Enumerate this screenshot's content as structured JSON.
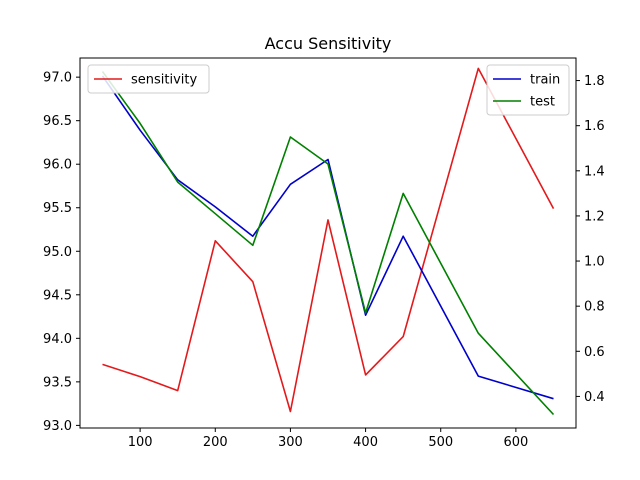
{
  "chart_data": {
    "type": "line",
    "title": "Accu Sensitivity",
    "xlabel": "",
    "ylabel_left": "",
    "ylabel_right": "",
    "xlim": [
      20,
      680
    ],
    "xticks": [
      100,
      200,
      300,
      400,
      500,
      600
    ],
    "ylim_left": [
      92.97,
      97.22
    ],
    "yticks_left": [
      "93.0",
      "93.5",
      "94.0",
      "94.5",
      "95.0",
      "95.5",
      "96.0",
      "96.5",
      "97.0"
    ],
    "ylim_right": [
      0.26,
      1.9
    ],
    "yticks_right": [
      "0.4",
      "0.6",
      "0.8",
      "1.0",
      "1.2",
      "1.4",
      "1.6",
      "1.8"
    ],
    "grid": false,
    "series": [
      {
        "name": "sensitivity",
        "axis": "left",
        "color": "#e31a1c",
        "x": [
          50,
          100,
          150,
          200,
          250,
          300,
          350,
          400,
          450,
          550,
          650
        ],
        "values": [
          93.7,
          93.56,
          93.4,
          95.12,
          94.65,
          93.16,
          95.36,
          93.58,
          94.02,
          97.1,
          95.49
        ]
      },
      {
        "name": "train",
        "axis": "right",
        "color": "#0000cc",
        "x": [
          50,
          100,
          150,
          200,
          250,
          300,
          350,
          400,
          450,
          550,
          650
        ],
        "values": [
          1.82,
          1.58,
          1.36,
          1.24,
          1.11,
          1.34,
          1.45,
          0.76,
          1.11,
          0.49,
          0.39
        ]
      },
      {
        "name": "test",
        "axis": "right",
        "color": "#008000",
        "x": [
          50,
          100,
          150,
          200,
          250,
          300,
          350,
          400,
          450,
          550,
          650
        ],
        "values": [
          1.84,
          1.61,
          1.35,
          1.21,
          1.07,
          1.55,
          1.43,
          0.77,
          1.3,
          0.68,
          0.32
        ]
      }
    ],
    "legends": [
      {
        "placement": "upper-left",
        "entries": [
          "sensitivity"
        ]
      },
      {
        "placement": "upper-right",
        "entries": [
          "train",
          "test"
        ]
      }
    ]
  }
}
